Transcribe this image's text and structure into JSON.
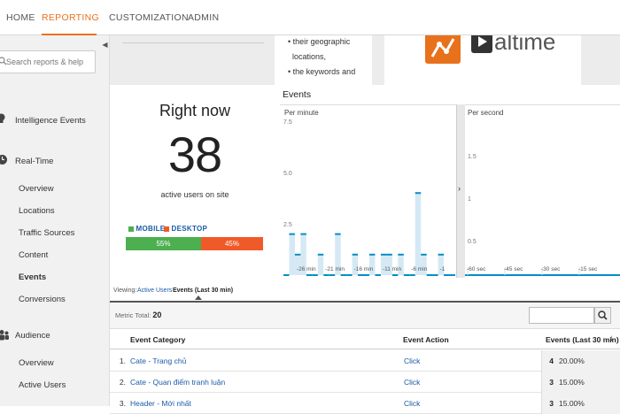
{
  "nav": {
    "tabs": [
      {
        "label": "HOME"
      },
      {
        "label": "REPORTING"
      },
      {
        "label": "CUSTOMIZATION"
      },
      {
        "label": "ADMIN"
      }
    ],
    "active_tab": "REPORTING",
    "accent_color": "#e8711c"
  },
  "sidebar": {
    "search_placeholder": "Search reports & help",
    "sections": {
      "intelligence": {
        "label": "Intelligence Events",
        "icon": "lightbulb-icon"
      },
      "realtime": {
        "label": "Real-Time",
        "icon": "clock-icon",
        "items": [
          "Overview",
          "Locations",
          "Traffic Sources",
          "Content",
          "Events",
          "Conversions"
        ],
        "active_item": "Events"
      },
      "audience": {
        "label": "Audience",
        "icon": "people-icon",
        "items": [
          "Overview",
          "Active Users"
        ]
      }
    }
  },
  "promo": {
    "bullets": [
      "their geographic",
      "locations,",
      "the keywords and"
    ],
    "video_text": "altime"
  },
  "right_now": {
    "title": "Right now",
    "count": "38",
    "subtitle": "active users on site",
    "legend_mobile": "MOBILE",
    "legend_desktop": "DESKTOP",
    "mobile_pct": "55%",
    "desktop_pct": "45%",
    "mobile_share": 0.55,
    "mobile_color": "#4caf50",
    "desktop_color": "#f05a28"
  },
  "events_chart": {
    "title": "Events",
    "per_minute_label": "Per minute",
    "per_second_label": "Per second",
    "pm_y_ticks": [
      "7.5",
      "5.0",
      "2.5"
    ],
    "pm_x_ticks": [
      "-26 min",
      "-21 min",
      "-16 min",
      "-11 min",
      "-6 min",
      "-1"
    ],
    "ps_y_ticks": [
      "1.5",
      "1",
      "0.5"
    ],
    "ps_x_ticks": [
      "-60 sec",
      "-45 sec",
      "-30 sec",
      "-15 sec"
    ],
    "divider_arrow": "›",
    "series_color": "#058dc7"
  },
  "chart_data": {
    "type": "bar",
    "title": "Per minute",
    "ylim": [
      0,
      7.5
    ],
    "y_ticks": [
      2.5,
      5.0,
      7.5
    ],
    "x_ticks": [
      "-26 min",
      "-21 min",
      "-16 min",
      "-11 min",
      "-6 min",
      "-1"
    ],
    "values": [
      0,
      2,
      1,
      2,
      0,
      0,
      1,
      0,
      0,
      2,
      0,
      0,
      1,
      0,
      0,
      1,
      0,
      1,
      1,
      0,
      1,
      0,
      0,
      4,
      1,
      0,
      0,
      1,
      0,
      0
    ],
    "grid": false,
    "legend": "none"
  },
  "viewing": {
    "label": "Viewing:",
    "tab_active_users": "Active Users",
    "tab_events": "Events (Last 30 min)"
  },
  "table": {
    "metric_total_label": "Metric Total:",
    "metric_total_value": "20",
    "filter_placeholder": "",
    "headers": {
      "category": "Event Category",
      "action": "Event Action",
      "value": "Events (Last 30 min)"
    },
    "rows": [
      {
        "num": "1.",
        "category": "Cate - Trang chủ",
        "action": "Click",
        "value": "4",
        "pct": "20.00%"
      },
      {
        "num": "2.",
        "category": "Cate - Quan điểm tranh luận",
        "action": "Click",
        "value": "3",
        "pct": "15.00%"
      },
      {
        "num": "3.",
        "category": "Header - Mới nhất",
        "action": "Click",
        "value": "3",
        "pct": "15.00%"
      }
    ]
  }
}
